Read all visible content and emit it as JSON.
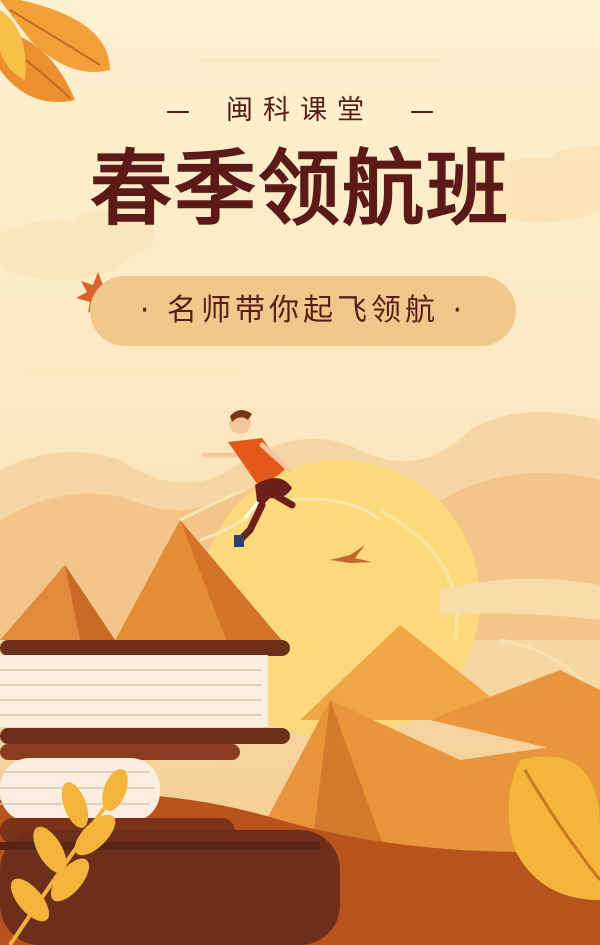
{
  "poster": {
    "brand": "闽科课堂",
    "title": "春季领航班",
    "tagline": "· 名师带你起飞领航 ·"
  },
  "colors": {
    "background": "#fdeecb",
    "title_text": "#5b1a17",
    "pill": "#f1c88c",
    "mountain_dark": "#d9792a",
    "mountain_light": "#f4a441",
    "book_cover": "#6d2e1b",
    "sun": "#fcd97a"
  },
  "icons": [
    "maple-leaf-icon",
    "autumn-leaves-branch",
    "bird-icon",
    "jumping-boy-illustration",
    "book-stack-illustration"
  ]
}
